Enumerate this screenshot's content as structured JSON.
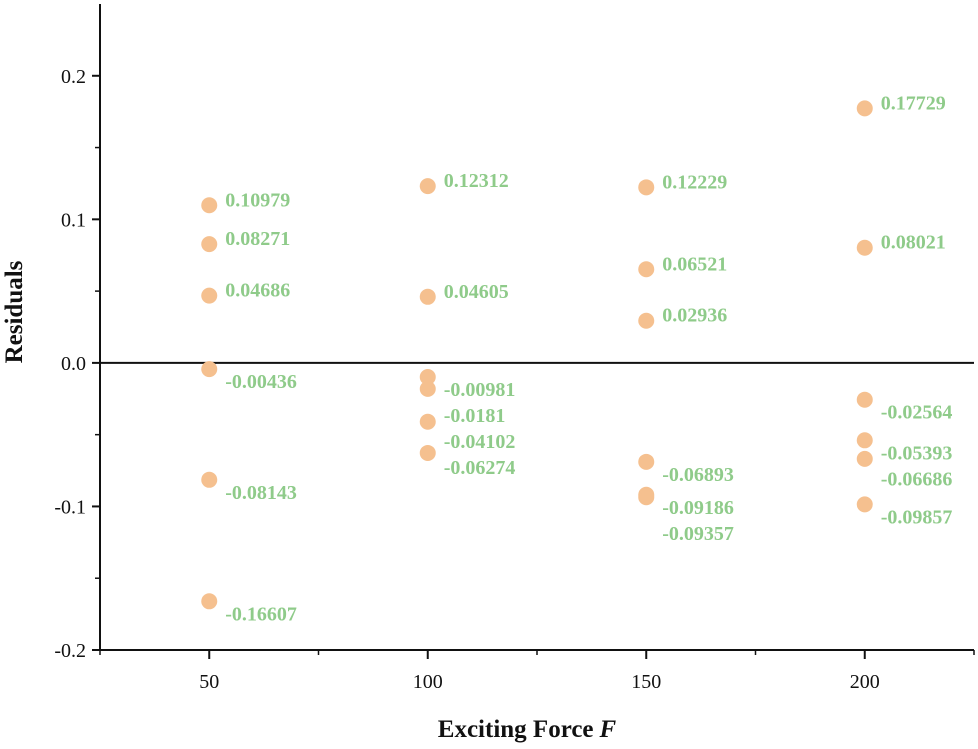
{
  "chart_data": {
    "type": "scatter",
    "title": "",
    "xlabel": "Exciting Force",
    "xlabel_var": "F",
    "ylabel": "Residuals",
    "xlim": [
      25,
      225
    ],
    "ylim": [
      -0.2,
      0.25
    ],
    "xticks": [
      50,
      100,
      150,
      200
    ],
    "xtick_labels": [
      "50",
      "100",
      "150",
      "200"
    ],
    "yticks": [
      0.2,
      0.1,
      0.0,
      -0.1,
      -0.2
    ],
    "ytick_labels": [
      "0.2",
      "0.1",
      "0.0",
      "-0.1",
      "-0.2"
    ],
    "zero_line": true,
    "grid": false,
    "legend": "none",
    "marker_color": "#F5C08F",
    "label_color": "#8FCB8A",
    "axis_color": "#111111",
    "points": [
      {
        "x": 50,
        "y": 0.10979,
        "label": "0.10979"
      },
      {
        "x": 50,
        "y": 0.08271,
        "label": "0.08271"
      },
      {
        "x": 50,
        "y": 0.04686,
        "label": "0.04686"
      },
      {
        "x": 50,
        "y": -0.00436,
        "label": "-0.00436"
      },
      {
        "x": 50,
        "y": -0.08143,
        "label": "-0.08143"
      },
      {
        "x": 50,
        "y": -0.16607,
        "label": "-0.16607"
      },
      {
        "x": 100,
        "y": 0.12312,
        "label": "0.12312"
      },
      {
        "x": 100,
        "y": 0.04605,
        "label": "0.04605"
      },
      {
        "x": 100,
        "y": -0.00981,
        "label": "-0.00981"
      },
      {
        "x": 100,
        "y": -0.0181,
        "label": "-0.0181"
      },
      {
        "x": 100,
        "y": -0.04102,
        "label": "-0.04102"
      },
      {
        "x": 100,
        "y": -0.06274,
        "label": "-0.06274"
      },
      {
        "x": 150,
        "y": 0.12229,
        "label": "0.12229"
      },
      {
        "x": 150,
        "y": 0.06521,
        "label": "0.06521"
      },
      {
        "x": 150,
        "y": 0.02936,
        "label": "0.02936"
      },
      {
        "x": 150,
        "y": -0.06893,
        "label": "-0.06893"
      },
      {
        "x": 150,
        "y": -0.09186,
        "label": "-0.09186"
      },
      {
        "x": 150,
        "y": -0.09357,
        "label": "-0.09357"
      },
      {
        "x": 200,
        "y": 0.17729,
        "label": "0.17729"
      },
      {
        "x": 200,
        "y": 0.08021,
        "label": "0.08021"
      },
      {
        "x": 200,
        "y": -0.02564,
        "label": "-0.02564"
      },
      {
        "x": 200,
        "y": -0.05393,
        "label": "-0.05393"
      },
      {
        "x": 200,
        "y": -0.06686,
        "label": "-0.06686"
      },
      {
        "x": 200,
        "y": -0.09857,
        "label": "-0.09857"
      }
    ]
  }
}
